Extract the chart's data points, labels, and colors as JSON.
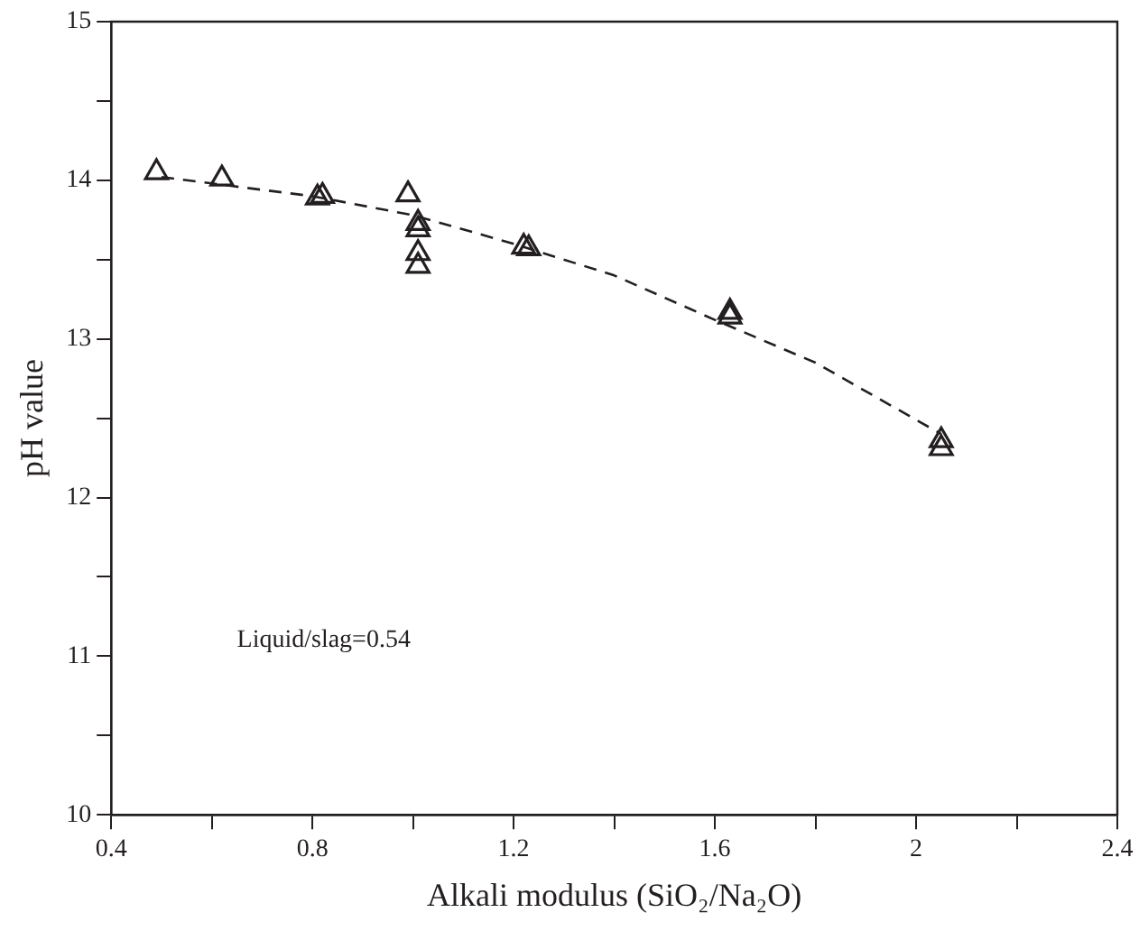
{
  "chart_data": {
    "type": "scatter",
    "xlabel": "Alkali modulus (SiO₂/Na₂O)",
    "ylabel": "pH value",
    "series": [
      {
        "color": "#231f20",
        "x": [
          0.49,
          0.62,
          0.81,
          0.82,
          0.99,
          1.01,
          1.01,
          1.01,
          1.01,
          1.22,
          1.23,
          1.63,
          1.63,
          2.05,
          2.05
        ],
        "values": [
          14.05,
          14.01,
          13.89,
          13.9,
          13.91,
          13.73,
          13.69,
          13.54,
          13.46,
          13.58,
          13.57,
          13.17,
          13.14,
          12.36,
          12.31
        ]
      },
      {
        "type": "line",
        "color": "#231f20",
        "line_style": "dashed",
        "marker": "none",
        "x": [
          0.5,
          0.8,
          1.0,
          1.2,
          1.4,
          1.6,
          1.8,
          2.05
        ],
        "values": [
          14.02,
          13.9,
          13.78,
          13.6,
          13.4,
          13.12,
          12.85,
          12.4
        ]
      }
    ],
    "marker": "triangle",
    "xlim": [
      0.4,
      2.4
    ],
    "xticks": [
      0.4,
      {
        "value": 0.6,
        "label": null
      },
      0.8,
      {
        "value": 1.0,
        "label": null
      },
      1.2,
      {
        "value": 1.4,
        "label": null
      },
      1.6,
      {
        "value": 1.8,
        "label": null
      },
      2,
      {
        "value": 2.2,
        "label": null
      },
      2.4
    ],
    "ylim": [
      10,
      15
    ],
    "yticks": [
      10,
      {
        "value": 10.5,
        "label": null
      },
      11,
      {
        "value": 11.5,
        "label": null
      },
      12,
      {
        "value": 12.5,
        "label": null
      },
      13,
      {
        "value": 13.5,
        "label": null
      },
      14,
      {
        "value": 14.5,
        "label": null
      },
      15
    ],
    "annotations": [
      "Liquid/slag=0.54"
    ],
    "grid": false,
    "legend": false
  }
}
